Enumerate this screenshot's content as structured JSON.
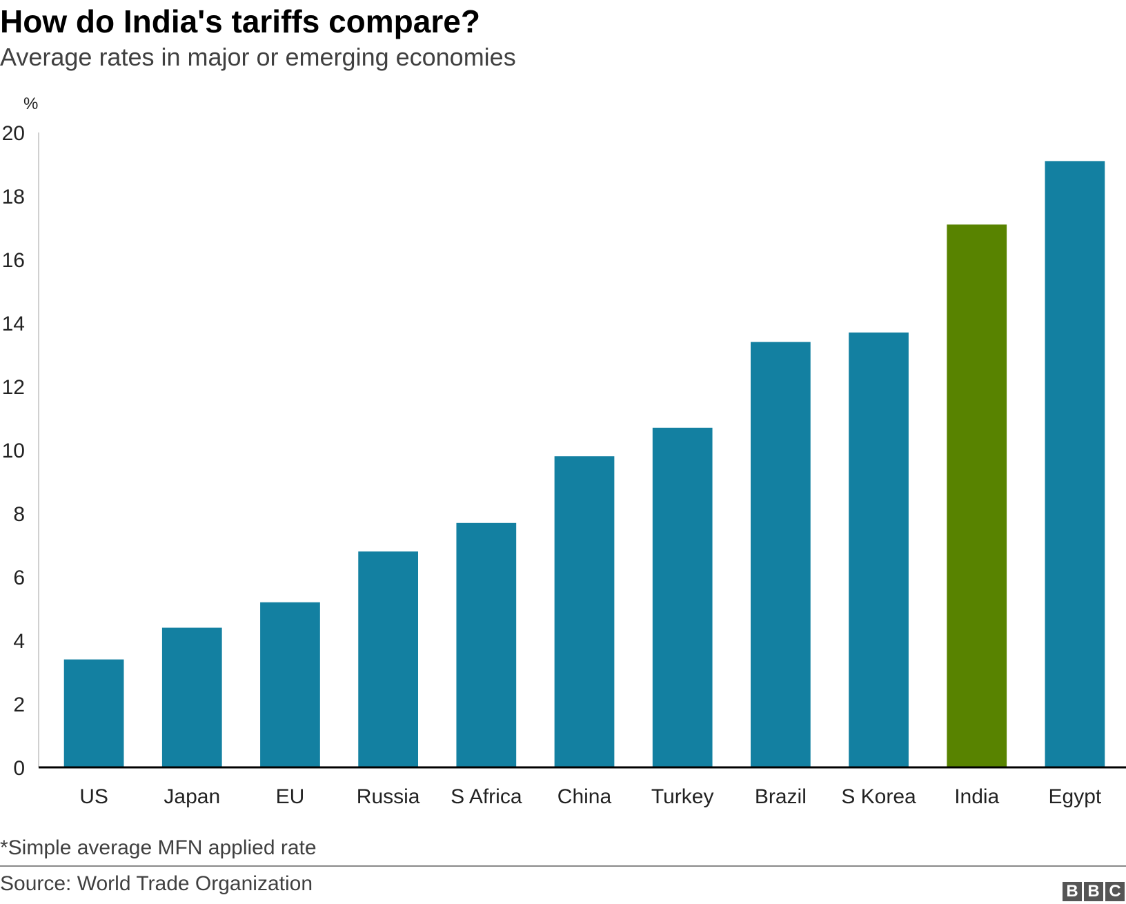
{
  "chart_data": {
    "type": "bar",
    "title": "How do India's tariffs compare?",
    "subtitle": "Average rates in major or emerging economies",
    "ylabel": "%",
    "xlabel": "",
    "ylim": [
      0,
      20
    ],
    "yticks": [
      0,
      2,
      4,
      6,
      8,
      10,
      12,
      14,
      16,
      18,
      20
    ],
    "grid": false,
    "categories": [
      "US",
      "Japan",
      "EU",
      "Russia",
      "S Africa",
      "China",
      "Turkey",
      "Brazil",
      "S Korea",
      "India",
      "Egypt"
    ],
    "values": [
      3.4,
      4.4,
      5.2,
      6.8,
      7.7,
      9.8,
      10.7,
      13.4,
      13.7,
      17.1,
      19.1
    ],
    "highlight_category": "India",
    "colors": {
      "default": "#1380A1",
      "highlight": "#588300",
      "axis": "#000000"
    }
  },
  "footnote": "*Simple average MFN applied rate",
  "source": "Source: World Trade Organization",
  "logo": {
    "letters": [
      "B",
      "B",
      "C"
    ]
  }
}
